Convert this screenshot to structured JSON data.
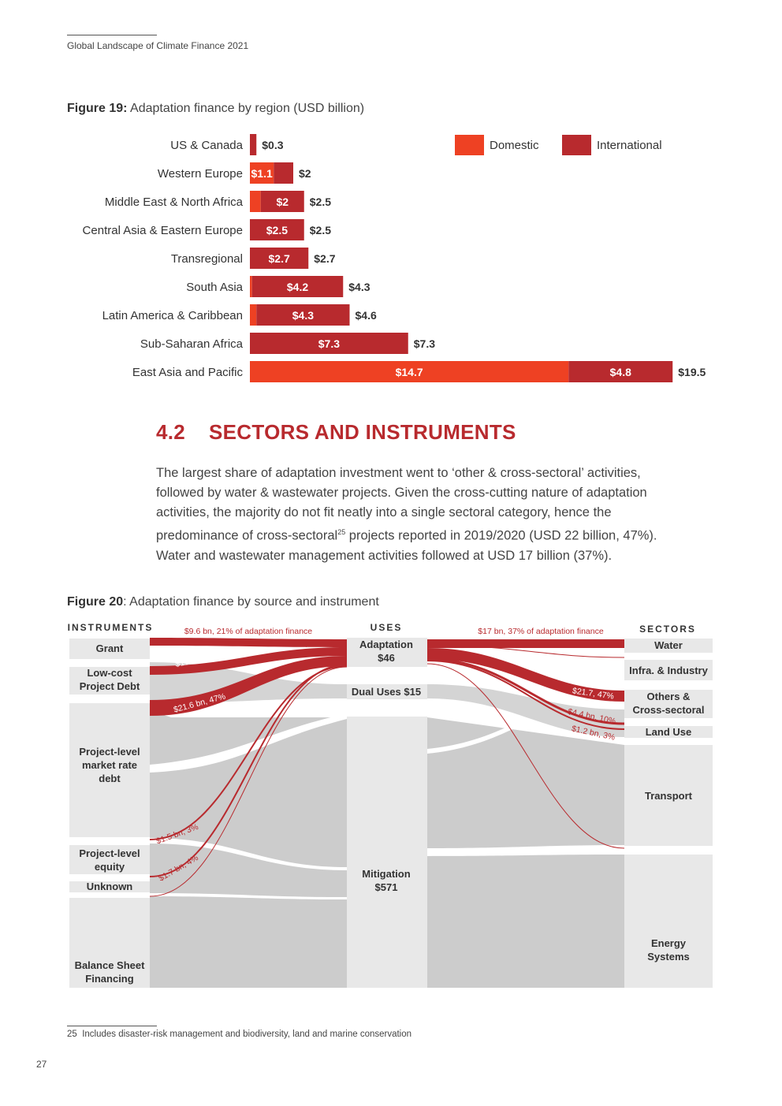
{
  "header": {
    "title": "Global Landscape of Climate Finance 2021"
  },
  "figure19": {
    "label": "Figure 19:",
    "caption": "Adaptation finance by region (USD billion)"
  },
  "chart_data": {
    "type": "bar",
    "orientation": "horizontal",
    "stacked": true,
    "categories": [
      "US & Canada",
      "Western Europe",
      "Middle East & North Africa",
      "Central Asia & Eastern Europe",
      "Transregional",
      "South Asia",
      "Latin America & Caribbean",
      "Sub-Saharan Africa",
      "East Asia and Pacific"
    ],
    "series": [
      {
        "name": "Domestic",
        "color": "#ee4123",
        "values": [
          0,
          1.1,
          0.5,
          0,
          0,
          0.1,
          0.3,
          0,
          14.7
        ],
        "labels": [
          "",
          "$1.1",
          "",
          "",
          "",
          "",
          "",
          "",
          "$14.7"
        ]
      },
      {
        "name": "International",
        "color": "#b82a2e",
        "values": [
          0.3,
          0.9,
          2,
          2.5,
          2.7,
          4.2,
          4.3,
          7.3,
          4.8
        ],
        "labels": [
          "",
          "",
          "$2",
          "$2.5",
          "$2.7",
          "$4.2",
          "$4.3",
          "$7.3",
          "$4.8"
        ]
      }
    ],
    "totals": [
      "$0.3",
      "$2",
      "$2.5",
      "$2.5",
      "$2.7",
      "$4.3",
      "$4.6",
      "$7.3",
      "$19.5"
    ],
    "legend_position": "top-right",
    "grid": false
  },
  "section": {
    "number": "4.2",
    "title": "SECTORS AND INSTRUMENTS"
  },
  "body": {
    "line1": "The largest share of adaptation investment went to ‘other & cross-sectoral’ activities,",
    "line2": "followed by water & wastewater projects. Given the cross-cutting nature of adaptation",
    "line3": "activities, the majority do not fit neatly into a single sectoral category, hence the",
    "line4a": "predominance of cross-sectoral",
    "sup": "25",
    "line4b": " projects reported in 2019/2020 (USD 22 billion, 47%).",
    "line5": "Water and wastewater management activities followed at USD 17 billion (37%)."
  },
  "figure20": {
    "label": "Figure 20",
    "caption": ": Adaptation finance by source and instrument"
  },
  "sankey": {
    "headers": {
      "instruments": "INSTRUMENTS",
      "uses": "USES",
      "sectors": "SECTORS"
    },
    "instruments": [
      {
        "label": "Grant"
      },
      {
        "label": "Low-cost Project Debt"
      },
      {
        "label": "Project-level market rate debt"
      },
      {
        "label": "Project-level equity"
      },
      {
        "label": "Unknown"
      },
      {
        "label": "Balance Sheet Financing"
      }
    ],
    "uses": [
      {
        "label": "Adaptation $46"
      },
      {
        "label": "Dual Uses $15"
      },
      {
        "label": "Mitigation $571"
      }
    ],
    "sectors": [
      {
        "label": "Water"
      },
      {
        "label": "Infra. & Industry"
      },
      {
        "label": "Others & Cross-sectoral"
      },
      {
        "label": "Land Use"
      },
      {
        "label": "Transport"
      },
      {
        "label": "Energy Systems"
      }
    ],
    "flow_labels": {
      "grant": "$9.6 bn, 21% of adaptation finance",
      "lowcost": "$11.4 bn, 25%",
      "market": "$21.6 bn, 47%",
      "equity": "$1.5 bn, 3%",
      "unknown": "$1.7 bn, 4%",
      "water": "$17 bn, 37% of adaptation finance",
      "others": "$21.7, 47%",
      "infra": "$4.4 bn, 10%",
      "land": "$1.2 bn, 3%"
    },
    "colors": {
      "node": "#e8e8e8",
      "flow": "#cccccc",
      "highlight": "#b82a2e"
    }
  },
  "footnote": {
    "num": "25",
    "text": "Includes disaster-risk management and biodiversity, land and marine conservation"
  },
  "page_number": "27"
}
